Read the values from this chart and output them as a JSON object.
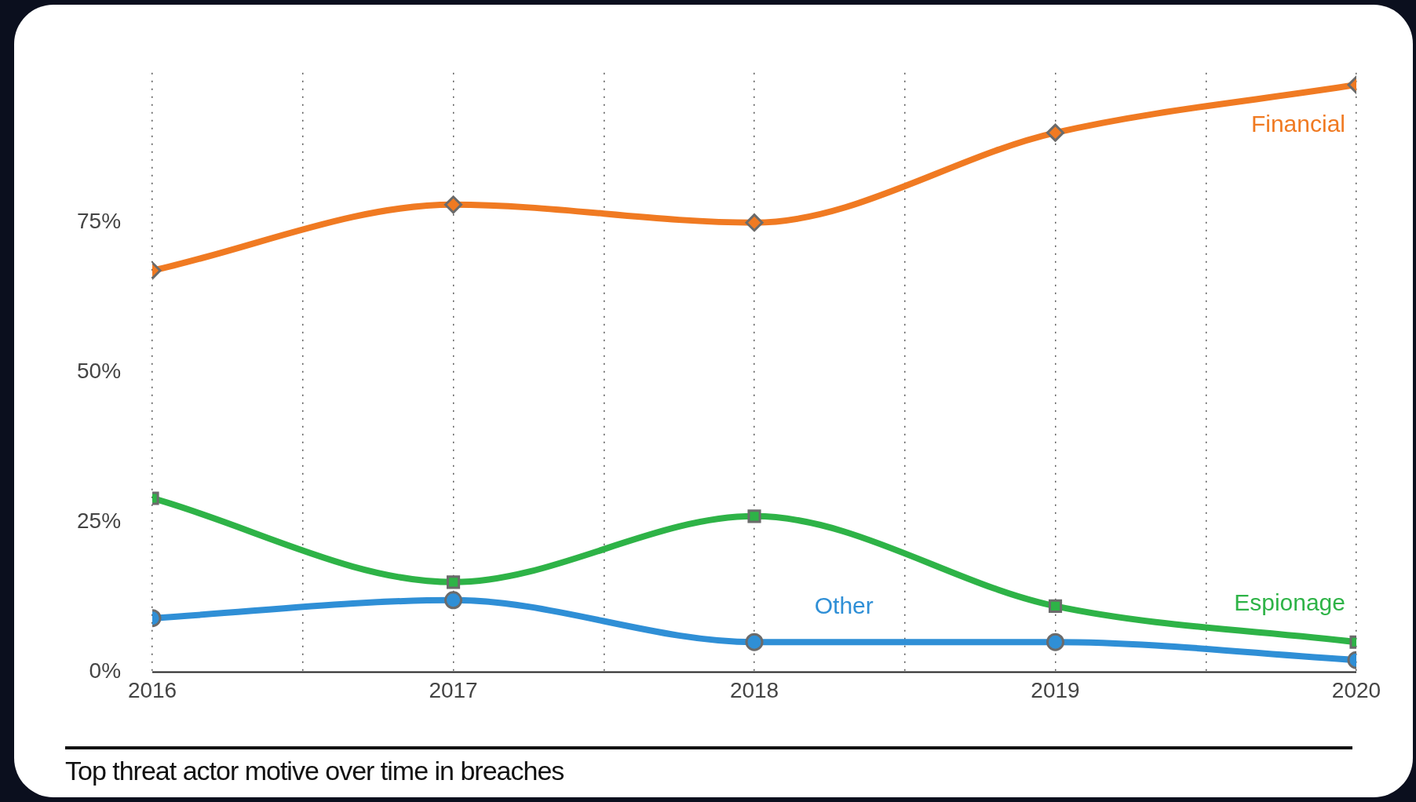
{
  "chart_data": {
    "type": "line",
    "title": "Top threat actor motive over time in breaches",
    "x": [
      2016,
      2017,
      2018,
      2019,
      2020
    ],
    "series": [
      {
        "name": "Financial",
        "color": "#f07a22",
        "marker": "diamond",
        "values": [
          67,
          78,
          75,
          90,
          98
        ]
      },
      {
        "name": "Espionage",
        "color": "#2eb347",
        "marker": "square",
        "values": [
          29,
          15,
          26,
          11,
          5
        ]
      },
      {
        "name": "Other",
        "color": "#2f8fd6",
        "marker": "circle",
        "values": [
          9,
          12,
          5,
          5,
          2
        ]
      }
    ],
    "xlim": [
      2016,
      2020
    ],
    "xticks": [
      2016,
      {
        "value": 2016.5,
        "label": null
      },
      2017,
      {
        "value": 2017.5,
        "label": null
      },
      2018,
      {
        "value": 2018.5,
        "label": null
      },
      2019,
      {
        "value": 2019.5,
        "label": null
      },
      2020
    ],
    "ylim": [
      0,
      100
    ],
    "yticks": [
      {
        "value": 0,
        "label": "0%"
      },
      {
        "value": 25,
        "label": "25%"
      },
      {
        "value": 50,
        "label": "50%"
      },
      {
        "value": 75,
        "label": "75%"
      }
    ],
    "grid": "x",
    "legend": false
  }
}
